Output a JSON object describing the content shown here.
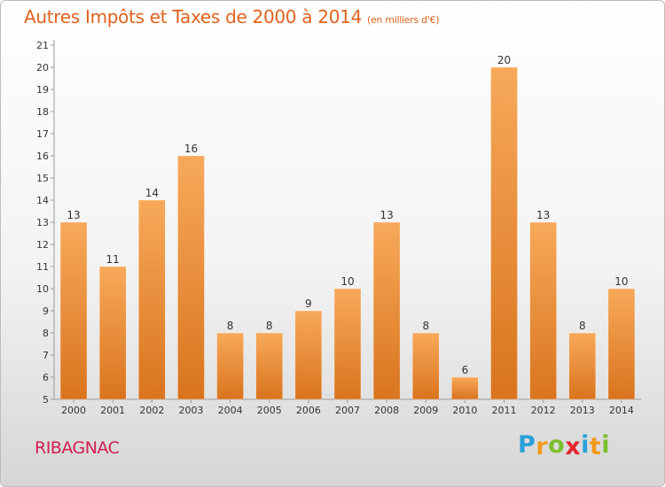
{
  "header": {
    "title": "Autres Impôts et Taxes de 2000 à 2014",
    "unit": "(en milliers d'€)"
  },
  "footer": {
    "commune": "RIBAGNAC",
    "brand_letters": [
      "P",
      "r",
      "o",
      "x",
      "i",
      "t",
      "i"
    ],
    "brand_colors": [
      "#2aa0d8",
      "#f29a1f",
      "#7cbf2e",
      "#e3262f",
      "#2aa0d8",
      "#f29a1f",
      "#7cbf2e"
    ]
  },
  "colors": {
    "bar_light": "#f7a95a",
    "bar_dark": "#d9741e",
    "title": "#e0621d",
    "commune": "#d11f4e"
  },
  "chart_data": {
    "type": "bar",
    "categories": [
      "2000",
      "2001",
      "2002",
      "2003",
      "2004",
      "2005",
      "2006",
      "2007",
      "2008",
      "2009",
      "2010",
      "2011",
      "2012",
      "2013",
      "2014"
    ],
    "values": [
      13,
      11,
      14,
      16,
      8,
      8,
      9,
      10,
      13,
      8,
      6,
      20,
      13,
      8,
      10
    ],
    "title": "Autres Impôts et Taxes de 2000 à 2014",
    "subtitle": "(en milliers d'€)",
    "ylim": [
      5,
      21
    ],
    "yticks": [
      5,
      6,
      7,
      8,
      9,
      10,
      11,
      12,
      13,
      14,
      15,
      16,
      17,
      18,
      19,
      20,
      21
    ],
    "grid": false,
    "data_labels": true
  }
}
